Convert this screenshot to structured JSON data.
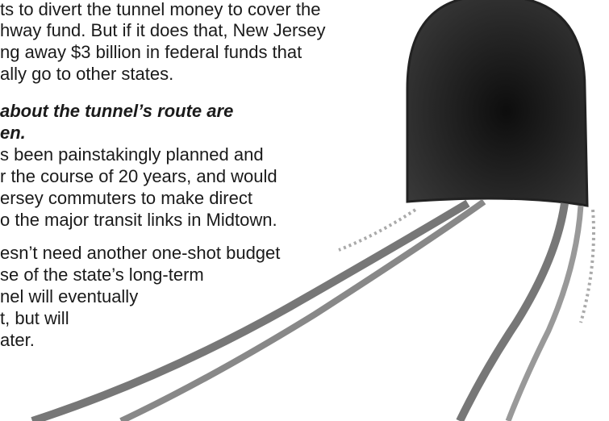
{
  "paragraph_1": {
    "lines": [
      "ts to divert the tunnel money to cover the",
      "hway fund. But if it does that, New Jersey",
      "ng away $3 billion in federal funds that",
      "ally go to other states."
    ]
  },
  "subhead": {
    "lines": [
      "about the tunnel’s route are",
      "en."
    ]
  },
  "paragraph_2": {
    "lines": [
      "s been painstakingly planned and",
      "r the course of 20 years, and would",
      "ersey commuters to make direct",
      "o the major transit links in Midtown."
    ]
  },
  "paragraph_3": {
    "lines": [
      "esn’t need another one-shot budget",
      "se of the state’s long-term",
      "nel will eventually",
      "t, but will",
      "ater."
    ]
  }
}
